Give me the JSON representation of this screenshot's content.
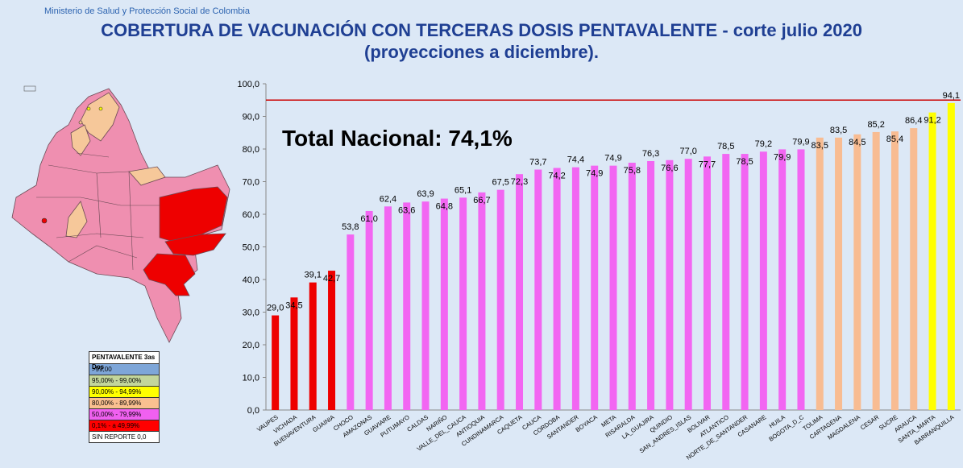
{
  "header": {
    "ministry": "Ministerio de Salud y Protección Social de Colombia",
    "title_line1": "COBERTURA DE VACUNACIÓN CON TERCERAS DOSIS PENTAVALENTE - corte julio 2020",
    "title_line2": "(proyecciones a diciembre).",
    "total": "Total Nacional: 74,1%"
  },
  "legend": {
    "title": "PENTAVALENTE 3as Dos",
    "items": [
      {
        "label": ">99,00",
        "color": "#7ea6d8"
      },
      {
        "label": "95,00% - 99,00%",
        "color": "#c3d69b"
      },
      {
        "label": "90,00% - 94,99%",
        "color": "#ffff00"
      },
      {
        "label": "80,00% - 89,99%",
        "color": "#fac090"
      },
      {
        "label": "50,00% - 79,99%",
        "color": "#f060f0"
      },
      {
        "label": "0,1% - a 49,99%",
        "color": "#ff0000"
      },
      {
        "label": "SIN REPORTE 0,0",
        "color": "#ffffff"
      }
    ]
  },
  "colors": {
    "red": "#ee0000",
    "magenta": "#f266f2",
    "peach": "#f8bc92",
    "yellow": "#ffff00",
    "reference_line": "#cc0000"
  },
  "chart_data": {
    "type": "bar",
    "title": "",
    "xlabel": "",
    "ylabel": "",
    "ylim": [
      0,
      100
    ],
    "yticks": [
      "0,0",
      "10,0",
      "20,0",
      "30,0",
      "40,0",
      "50,0",
      "60,0",
      "70,0",
      "80,0",
      "90,0",
      "100,0"
    ],
    "reference_line": 95,
    "grid": false,
    "categories": [
      "VAUPES",
      "VICHADA",
      "BUENAVENTURA",
      "GUAINIA",
      "CHOCO",
      "AMAZONAS",
      "GUAVIARE",
      "PUTUMAYO",
      "CALDAS",
      "NARIÑO",
      "VALLE_DEL_CAUCA",
      "ANTIOQUIA",
      "CUNDINAMARCA",
      "CAQUETA",
      "CAUCA",
      "CORDOBA",
      "SANTANDER",
      "BOYACA",
      "META",
      "RISARALDA",
      "LA_GUAJIRA",
      "QUINDIO",
      "SAN_ANDRES_ISLAS",
      "BOLIVAR",
      "ATLANTICO",
      "NORTE_DE_SANTANDER",
      "CASANARE",
      "HUILA",
      "BOGOTA_D_C",
      "TOLIMA",
      "CARTAGENA",
      "MAGDALENA",
      "CESAR",
      "SUCRE",
      "ARAUCA",
      "SANTA_MARTA",
      "BARRANQUILLA"
    ],
    "values": [
      29.0,
      34.5,
      39.1,
      42.7,
      53.8,
      61.0,
      62.4,
      63.6,
      63.9,
      64.8,
      65.1,
      66.7,
      67.5,
      72.3,
      73.7,
      74.2,
      74.4,
      74.9,
      74.9,
      75.8,
      76.3,
      76.6,
      77.0,
      77.7,
      78.5,
      78.5,
      79.2,
      79.9,
      79.9,
      83.5,
      83.5,
      84.5,
      85.2,
      85.4,
      86.4,
      91.2,
      94.1
    ],
    "labels": [
      "29,0",
      "34,5",
      "39,1",
      "42,7",
      "53,8",
      "61,0",
      "62,4",
      "63,6",
      "63,9",
      "64,8",
      "65,1",
      "66,7",
      "67,5",
      "72,3",
      "73,7",
      "74,2",
      "74,4",
      "74,9",
      "74,9",
      "75,8",
      "76,3",
      "76,6",
      "77,0",
      "77,7",
      "78,5",
      "78,5",
      "79,2",
      "79,9",
      "79,9",
      "83,5",
      "83,5",
      "84,5",
      "85,2",
      "85,4",
      "86,4",
      "91,2",
      "94,1"
    ],
    "bar_colors": [
      "red",
      "red",
      "red",
      "red",
      "magenta",
      "magenta",
      "magenta",
      "magenta",
      "magenta",
      "magenta",
      "magenta",
      "magenta",
      "magenta",
      "magenta",
      "magenta",
      "magenta",
      "magenta",
      "magenta",
      "magenta",
      "magenta",
      "magenta",
      "magenta",
      "magenta",
      "magenta",
      "magenta",
      "magenta",
      "magenta",
      "magenta",
      "magenta",
      "peach",
      "peach",
      "peach",
      "peach",
      "peach",
      "peach",
      "yellow",
      "yellow"
    ]
  }
}
